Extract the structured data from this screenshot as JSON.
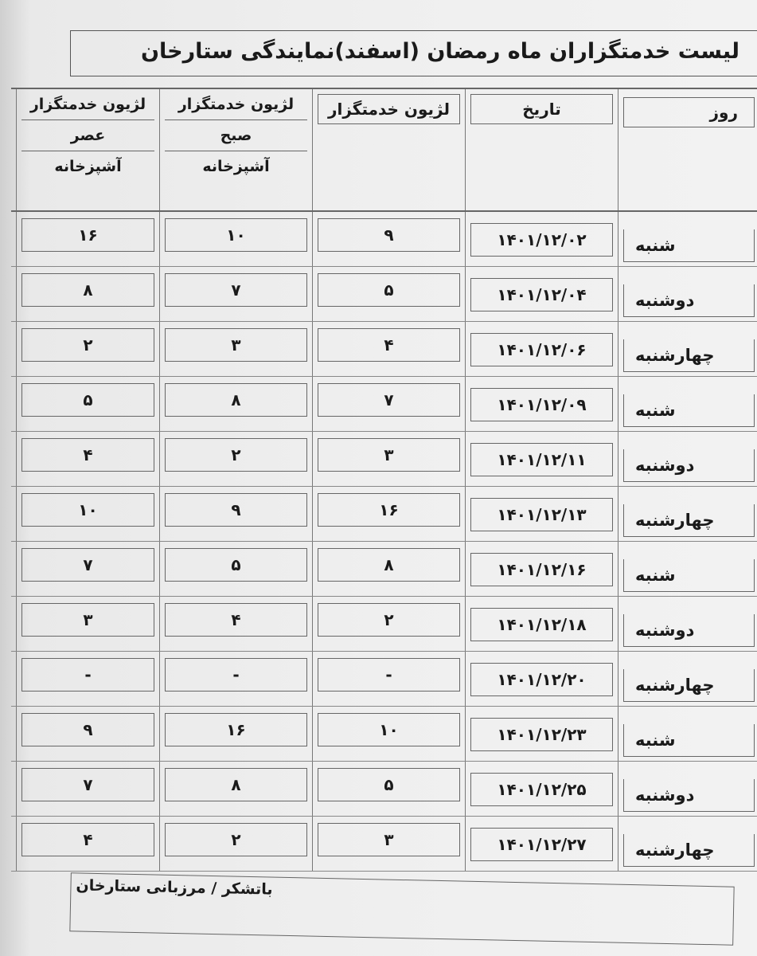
{
  "title": "لیست خدمتگزاران ماه رمضان (اسفند)نمایندگی ستارخان",
  "headers": {
    "day": "روز",
    "date": "تاریخ",
    "legion": "لژیون خدمتگزار",
    "morning": "لژیون خدمتگزار",
    "morning_sub": "صبح",
    "morning_kitchen": "آشپزخانه",
    "evening": "لژیون خدمتگزار",
    "evening_sub": "عصر",
    "evening_kitchen": "آشپزخانه"
  },
  "rows": [
    {
      "day": "شنبه",
      "date": "۱۴۰۱/۱۲/۰۲",
      "legion": "۹",
      "morning": "۱۰",
      "evening": "۱۶"
    },
    {
      "day": "دوشنبه",
      "date": "۱۴۰۱/۱۲/۰۴",
      "legion": "۵",
      "morning": "۷",
      "evening": "۸"
    },
    {
      "day": "چهارشنبه",
      "date": "۱۴۰۱/۱۲/۰۶",
      "legion": "۴",
      "morning": "۳",
      "evening": "۲"
    },
    {
      "day": "شنبه",
      "date": "۱۴۰۱/۱۲/۰۹",
      "legion": "۷",
      "morning": "۸",
      "evening": "۵"
    },
    {
      "day": "دوشنبه",
      "date": "۱۴۰۱/۱۲/۱۱",
      "legion": "۳",
      "morning": "۲",
      "evening": "۴"
    },
    {
      "day": "چهارشنبه",
      "date": "۱۴۰۱/۱۲/۱۳",
      "legion": "۱۶",
      "morning": "۹",
      "evening": "۱۰"
    },
    {
      "day": "شنبه",
      "date": "۱۴۰۱/۱۲/۱۶",
      "legion": "۸",
      "morning": "۵",
      "evening": "۷"
    },
    {
      "day": "دوشنبه",
      "date": "۱۴۰۱/۱۲/۱۸",
      "legion": "۲",
      "morning": "۴",
      "evening": "۳"
    },
    {
      "day": "چهارشنبه",
      "date": "۱۴۰۱/۱۲/۲۰",
      "legion": "-",
      "morning": "-",
      "evening": "-"
    },
    {
      "day": "شنبه",
      "date": "۱۴۰۱/۱۲/۲۳",
      "legion": "۱۰",
      "morning": "۱۶",
      "evening": "۹"
    },
    {
      "day": "دوشنبه",
      "date": "۱۴۰۱/۱۲/۲۵",
      "legion": "۵",
      "morning": "۸",
      "evening": "۷"
    },
    {
      "day": "چهارشنبه",
      "date": "۱۴۰۱/۱۲/۲۷",
      "legion": "۳",
      "morning": "۲",
      "evening": "۴"
    }
  ],
  "footer": "باتشکر / مرزبانی ستارخان"
}
